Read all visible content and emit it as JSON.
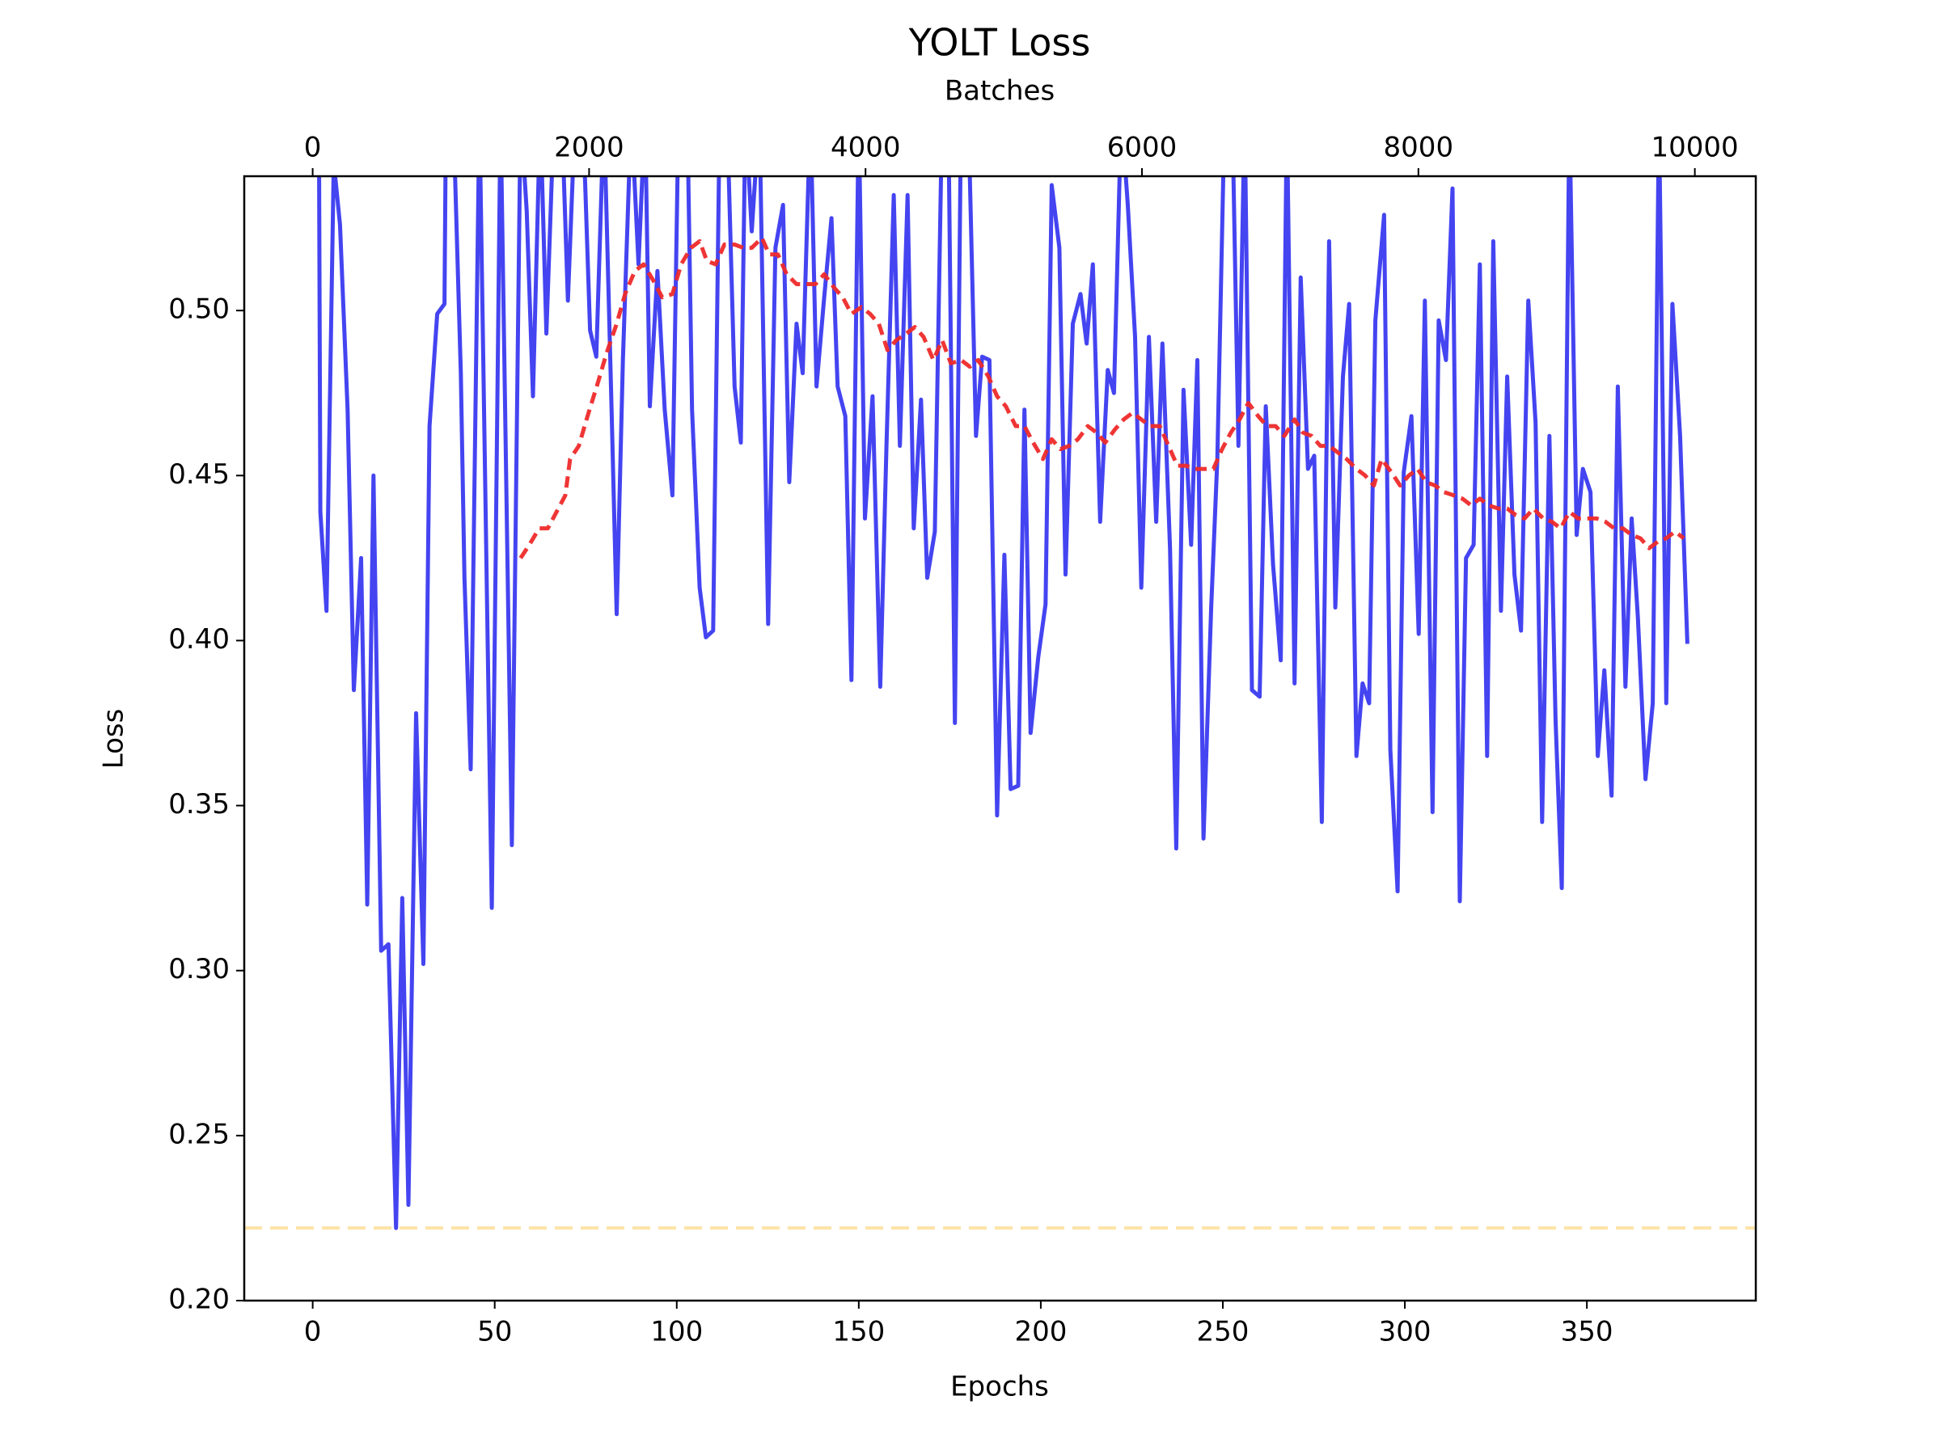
{
  "chart_data": {
    "type": "line",
    "title": "YOLT Loss",
    "xlabel": "Epochs",
    "ylabel": "Loss",
    "x2label": "Batches",
    "xlim": [
      -18.8,
      396.4
    ],
    "xticks": [
      0,
      50,
      100,
      150,
      200,
      250,
      300,
      350
    ],
    "x2lim": [
      -495,
      10441
    ],
    "x2ticks": [
      0,
      2000,
      4000,
      6000,
      8000,
      10000
    ],
    "ylim": [
      0.2,
      0.5407
    ],
    "yticks": [
      {
        "value": 0.2,
        "label": "0.20"
      },
      {
        "value": 0.25,
        "label": "0.25"
      },
      {
        "value": 0.3,
        "label": "0.30"
      },
      {
        "value": 0.35,
        "label": "0.35"
      },
      {
        "value": 0.4,
        "label": "0.40"
      },
      {
        "value": 0.45,
        "label": "0.45"
      },
      {
        "value": 0.5,
        "label": "0.50"
      }
    ],
    "hline": {
      "value": 0.222,
      "color": "#fde3a7"
    },
    "series": [
      {
        "color": "#3a3af0",
        "dash": "solid",
        "x": [
          1.7,
          2.1,
          3.8,
          5.8,
          7.5,
          9.6,
          11.3,
          13.3,
          15.0,
          16.7,
          18.8,
          20.8,
          22.9,
          24.6,
          26.3,
          28.4,
          30.4,
          32.1,
          34.2,
          36.2,
          36.6,
          38.6,
          40.7,
          41.7,
          43.4,
          45.8,
          49.2,
          51.6,
          54.7,
          57.1,
          58.8,
          60.5,
          62.5,
          64.2,
          66.3,
          68.4,
          70.1,
          72.1,
          74.2,
          76.2,
          77.9,
          80.0,
          82.1,
          83.5,
          85.2,
          87.5,
          89.5,
          91.3,
          92.6,
          94.7,
          96.7,
          98.8,
          100.5,
          102.9,
          104.2,
          106.3,
          108.0,
          110.0,
          111.8,
          113.8,
          115.9,
          117.6,
          118.9,
          120.6,
          122.7,
          125.1,
          127.1,
          129.2,
          130.9,
          132.9,
          134.6,
          136.7,
          138.4,
          140.5,
          142.5,
          144.2,
          146.3,
          148.0,
          150.0,
          151.7,
          153.8,
          155.9,
          157.6,
          159.6,
          161.3,
          163.4,
          165.1,
          167.1,
          168.8,
          170.9,
          172.9,
          174.6,
          176.4,
          178.1,
          180.1,
          182.2,
          183.9,
          185.9,
          188.0,
          190.0,
          191.7,
          193.8,
          195.5,
          197.2,
          199.3,
          201.3,
          203.0,
          205.1,
          206.8,
          208.8,
          210.9,
          212.6,
          214.3,
          216.3,
          218.4,
          220.1,
          222.1,
          223.9,
          225.9,
          227.6,
          229.7,
          231.7,
          233.4,
          235.5,
          237.2,
          239.2,
          241.3,
          243.0,
          244.7,
          246.8,
          248.5,
          250.5,
          252.6,
          254.3,
          256.0,
          258.0,
          260.1,
          261.8,
          263.8,
          265.9,
          267.6,
          269.7,
          271.4,
          273.4,
          275.1,
          277.2,
          279.2,
          280.9,
          283.0,
          284.7,
          286.7,
          288.4,
          290.2,
          291.9,
          294.3,
          296.0,
          298.0,
          299.7,
          301.8,
          303.8,
          305.5,
          307.6,
          309.3,
          311.3,
          313.1,
          315.1,
          316.8,
          318.9,
          320.6,
          322.6,
          324.3,
          326.4,
          328.1,
          330.1,
          331.9,
          333.9,
          335.9,
          337.7,
          339.7,
          341.4,
          343.1,
          345.2,
          347.2,
          348.9,
          351.0,
          353.0,
          354.8,
          356.8,
          358.5,
          360.6,
          362.3,
          364.0,
          366.1,
          368.1,
          369.8,
          371.8,
          373.5,
          375.6,
          377.6
        ],
        "values": [
          0.56,
          0.439,
          0.409,
          0.545,
          0.526,
          0.47,
          0.385,
          0.425,
          0.32,
          0.45,
          0.306,
          0.308,
          0.222,
          0.322,
          0.229,
          0.378,
          0.302,
          0.465,
          0.499,
          0.502,
          0.56,
          0.56,
          0.481,
          0.419,
          0.361,
          0.56,
          0.319,
          0.56,
          0.338,
          0.56,
          0.53,
          0.474,
          0.56,
          0.493,
          0.56,
          0.56,
          0.503,
          0.56,
          0.56,
          0.494,
          0.486,
          0.56,
          0.47,
          0.408,
          0.485,
          0.56,
          0.514,
          0.56,
          0.471,
          0.512,
          0.47,
          0.444,
          0.56,
          0.56,
          0.47,
          0.416,
          0.401,
          0.403,
          0.56,
          0.56,
          0.477,
          0.46,
          0.56,
          0.524,
          0.56,
          0.405,
          0.519,
          0.532,
          0.448,
          0.496,
          0.481,
          0.56,
          0.477,
          0.504,
          0.528,
          0.477,
          0.468,
          0.388,
          0.56,
          0.437,
          0.474,
          0.386,
          0.459,
          0.535,
          0.459,
          0.535,
          0.434,
          0.473,
          0.419,
          0.433,
          0.56,
          0.56,
          0.375,
          0.56,
          0.56,
          0.462,
          0.486,
          0.485,
          0.347,
          0.426,
          0.355,
          0.356,
          0.47,
          0.372,
          0.395,
          0.411,
          0.538,
          0.519,
          0.42,
          0.496,
          0.505,
          0.49,
          0.514,
          0.436,
          0.482,
          0.475,
          0.56,
          0.532,
          0.492,
          0.416,
          0.492,
          0.436,
          0.49,
          0.428,
          0.337,
          0.476,
          0.429,
          0.485,
          0.34,
          0.41,
          0.455,
          0.56,
          0.56,
          0.459,
          0.56,
          0.385,
          0.383,
          0.471,
          0.423,
          0.394,
          0.56,
          0.387,
          0.51,
          0.452,
          0.456,
          0.345,
          0.521,
          0.41,
          0.48,
          0.502,
          0.365,
          0.387,
          0.381,
          0.497,
          0.529,
          0.367,
          0.324,
          0.451,
          0.468,
          0.402,
          0.503,
          0.348,
          0.497,
          0.485,
          0.537,
          0.321,
          0.425,
          0.429,
          0.514,
          0.365,
          0.521,
          0.409,
          0.48,
          0.42,
          0.403,
          0.503,
          0.466,
          0.345,
          0.462,
          0.376,
          0.325,
          0.56,
          0.432,
          0.452,
          0.445,
          0.365,
          0.391,
          0.353,
          0.477,
          0.386,
          0.437,
          0.407,
          0.358,
          0.381,
          0.56,
          0.381,
          0.502,
          0.462,
          0.399
        ]
      },
      {
        "color": "#ee2a2a",
        "dash": "dashed",
        "x": [
          57.1,
          59.5,
          62.2,
          64.6,
          67.0,
          69.4,
          70.7,
          73.1,
          75.5,
          78.3,
          80.7,
          83.5,
          85.8,
          88.5,
          90.9,
          93.6,
          96.0,
          98.8,
          101.2,
          103.9,
          106.3,
          108.3,
          110.7,
          113.1,
          115.9,
          118.3,
          120.6,
          123.4,
          125.4,
          127.8,
          130.2,
          132.9,
          135.3,
          138.1,
          140.5,
          143.2,
          145.6,
          148.0,
          150.7,
          153.1,
          155.5,
          157.9,
          160.3,
          163.0,
          165.4,
          167.8,
          170.5,
          172.9,
          175.3,
          178.1,
          180.5,
          182.8,
          185.6,
          188.0,
          190.4,
          193.1,
          195.5,
          197.9,
          200.6,
          203.0,
          205.4,
          207.8,
          210.2,
          212.9,
          215.3,
          217.7,
          220.4,
          222.8,
          225.2,
          227.6,
          230.0,
          232.7,
          235.1,
          237.5,
          239.9,
          242.3,
          244.7,
          247.4,
          249.8,
          252.2,
          254.6,
          257.0,
          259.7,
          262.1,
          264.5,
          266.9,
          269.7,
          272.0,
          274.4,
          276.8,
          279.2,
          281.6,
          284.0,
          286.7,
          289.1,
          291.5,
          293.6,
          296.3,
          298.7,
          301.1,
          303.5,
          305.9,
          308.3,
          310.7,
          313.4,
          315.8,
          318.2,
          320.6,
          323.0,
          325.7,
          328.1,
          330.5,
          332.9,
          335.3,
          338.0,
          340.4,
          342.8,
          345.2,
          347.6,
          350.3,
          352.7,
          355.1,
          357.5,
          359.9,
          362.3,
          364.7,
          367.1,
          369.5,
          371.8,
          374.2,
          376.6
        ],
        "values": [
          0.425,
          0.429,
          0.434,
          0.434,
          0.439,
          0.444,
          0.455,
          0.459,
          0.468,
          0.478,
          0.487,
          0.496,
          0.505,
          0.512,
          0.514,
          0.509,
          0.504,
          0.505,
          0.514,
          0.519,
          0.521,
          0.515,
          0.514,
          0.52,
          0.52,
          0.519,
          0.519,
          0.522,
          0.517,
          0.517,
          0.511,
          0.508,
          0.508,
          0.508,
          0.511,
          0.507,
          0.504,
          0.499,
          0.501,
          0.499,
          0.496,
          0.488,
          0.491,
          0.493,
          0.495,
          0.492,
          0.485,
          0.491,
          0.484,
          0.485,
          0.483,
          0.485,
          0.48,
          0.474,
          0.471,
          0.465,
          0.465,
          0.46,
          0.455,
          0.461,
          0.458,
          0.459,
          0.461,
          0.465,
          0.463,
          0.46,
          0.464,
          0.467,
          0.469,
          0.467,
          0.465,
          0.465,
          0.459,
          0.453,
          0.453,
          0.452,
          0.452,
          0.452,
          0.458,
          0.463,
          0.467,
          0.472,
          0.468,
          0.465,
          0.465,
          0.462,
          0.467,
          0.463,
          0.462,
          0.459,
          0.459,
          0.457,
          0.455,
          0.452,
          0.45,
          0.447,
          0.455,
          0.451,
          0.447,
          0.45,
          0.452,
          0.448,
          0.447,
          0.445,
          0.444,
          0.443,
          0.441,
          0.443,
          0.441,
          0.44,
          0.44,
          0.438,
          0.437,
          0.44,
          0.437,
          0.436,
          0.434,
          0.439,
          0.437,
          0.437,
          0.437,
          0.436,
          0.434,
          0.434,
          0.432,
          0.431,
          0.428,
          0.43,
          0.431,
          0.433,
          0.431
        ]
      }
    ]
  }
}
